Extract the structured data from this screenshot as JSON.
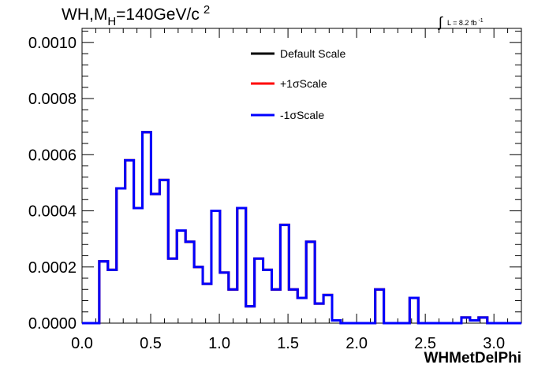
{
  "chart_data": {
    "type": "histogram",
    "title": {
      "main": "WH,M",
      "sub": "H",
      "rest": "=140GeV/c",
      "sup": "2"
    },
    "luminosity": {
      "integral": "∫",
      "text": "L = 8.2 fb",
      "sup": "-1"
    },
    "xlabel": "WHMetDelPhi",
    "ylabel": "",
    "xlim": [
      0.0,
      3.2
    ],
    "ylim": [
      0.0,
      0.00105
    ],
    "x_ticks": [
      "0.0",
      "0.5",
      "1.0",
      "1.5",
      "2.0",
      "2.5",
      "3.0"
    ],
    "x_tick_values": [
      0.0,
      0.5,
      1.0,
      1.5,
      2.0,
      2.5,
      3.0
    ],
    "y_ticks": [
      "0.0000",
      "0.0002",
      "0.0004",
      "0.0006",
      "0.0008",
      "0.0010"
    ],
    "y_tick_values": [
      0.0,
      0.0002,
      0.0004,
      0.0006,
      0.0008,
      0.001
    ],
    "grid": false,
    "legend_position": "top-center",
    "bin_edges_start": 0.0,
    "bin_width": 0.0628,
    "series": [
      {
        "name": "Default Scale",
        "color": "#000000",
        "values": [
          0,
          0,
          0.00022,
          0.00019,
          0.00048,
          0.00058,
          0.00041,
          0.00068,
          0.00046,
          0.00051,
          0.00023,
          0.00033,
          0.00029,
          0.0002,
          0.00014,
          0.0004,
          0.00018,
          0.00012,
          0.00041,
          6e-05,
          0.00023,
          0.00019,
          0.00012,
          0.00035,
          0.00012,
          9e-05,
          0.00029,
          7e-05,
          0.0001,
          1e-05,
          0,
          0,
          0,
          0,
          0.00012,
          0,
          0,
          0,
          9e-05,
          0,
          0,
          0,
          0,
          0,
          2e-05,
          1e-05,
          2e-05,
          0,
          0,
          0,
          0
        ]
      },
      {
        "name": "+1σScale",
        "color": "#ff0000",
        "values": [
          0,
          0,
          0.00022,
          0.00019,
          0.00048,
          0.00058,
          0.00041,
          0.00068,
          0.00046,
          0.00051,
          0.00023,
          0.00033,
          0.00029,
          0.0002,
          0.00014,
          0.0004,
          0.00018,
          0.00012,
          0.00041,
          6e-05,
          0.00023,
          0.00019,
          0.00012,
          0.00035,
          0.00012,
          9e-05,
          0.00029,
          7e-05,
          0.0001,
          1e-05,
          0,
          0,
          0,
          0,
          0.00012,
          0,
          0,
          0,
          9e-05,
          0,
          0,
          0,
          0,
          0,
          2e-05,
          1e-05,
          2e-05,
          0,
          0,
          0,
          0
        ]
      },
      {
        "name": "-1σScale",
        "color": "#0000ff",
        "values": [
          0,
          0,
          0.00022,
          0.00019,
          0.00048,
          0.00058,
          0.00041,
          0.00068,
          0.00046,
          0.00051,
          0.00023,
          0.00033,
          0.00029,
          0.0002,
          0.00014,
          0.0004,
          0.00018,
          0.00012,
          0.00041,
          6e-05,
          0.00023,
          0.00019,
          0.00012,
          0.00035,
          0.00012,
          9e-05,
          0.00029,
          7e-05,
          0.0001,
          1e-05,
          0,
          0,
          0,
          0,
          0.00012,
          0,
          0,
          0,
          9e-05,
          0,
          0,
          0,
          0,
          0,
          2e-05,
          1e-05,
          2e-05,
          0,
          0,
          0,
          0
        ]
      }
    ]
  }
}
